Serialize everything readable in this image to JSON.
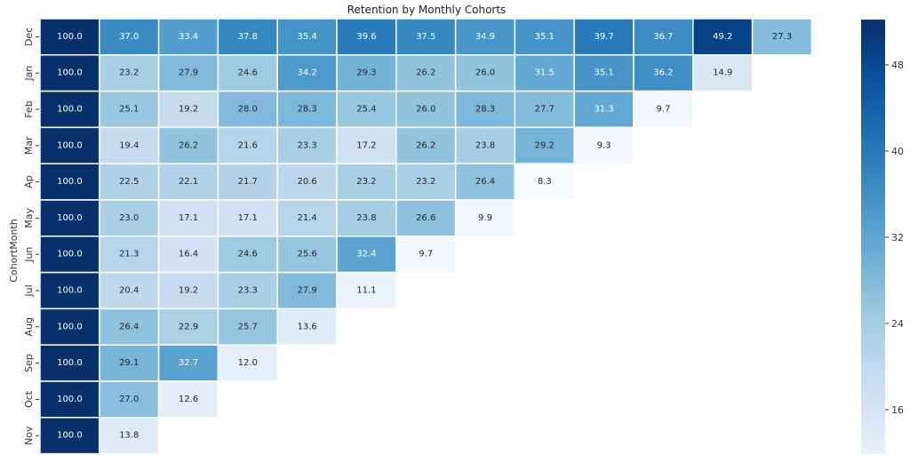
{
  "chart_data": {
    "type": "heatmap",
    "title": "Retention by Monthly Cohorts",
    "ylabel": "CohortMonth",
    "xlabel": "",
    "colormap": "Blues",
    "color_range": [
      8.3,
      52.2
    ],
    "colorbar_ticks": [
      48,
      40,
      32,
      24,
      16
    ],
    "row_labels": [
      "Dec",
      "Jan",
      "Feb",
      "Mar",
      "Ap",
      "May",
      "Jun",
      "Jul",
      "Aug",
      "Sep",
      "Oct",
      "Nov"
    ],
    "rows": [
      [
        100.0,
        37.0,
        33.4,
        37.8,
        35.4,
        39.6,
        37.5,
        34.9,
        35.1,
        39.7,
        36.7,
        49.2,
        27.3
      ],
      [
        100.0,
        23.2,
        27.9,
        24.6,
        34.2,
        29.3,
        26.2,
        26.0,
        31.5,
        35.1,
        36.2,
        14.9
      ],
      [
        100.0,
        25.1,
        19.2,
        28.0,
        28.3,
        25.4,
        26.0,
        28.3,
        27.7,
        31.3,
        9.7
      ],
      [
        100.0,
        19.4,
        26.2,
        21.6,
        23.3,
        17.2,
        26.2,
        23.8,
        29.2,
        9.3
      ],
      [
        100.0,
        22.5,
        22.1,
        21.7,
        20.6,
        23.2,
        23.2,
        26.4,
        8.3
      ],
      [
        100.0,
        23.0,
        17.1,
        17.1,
        21.4,
        23.8,
        26.6,
        9.9
      ],
      [
        100.0,
        21.3,
        16.4,
        24.6,
        25.6,
        32.4,
        9.7
      ],
      [
        100.0,
        20.4,
        19.2,
        23.3,
        27.9,
        11.1
      ],
      [
        100.0,
        26.4,
        22.9,
        25.7,
        13.6
      ],
      [
        100.0,
        29.1,
        32.7,
        12.0
      ],
      [
        100.0,
        27.0,
        12.6
      ],
      [
        100.0,
        13.8
      ]
    ],
    "grid": false,
    "legend": "colorbar-right"
  }
}
